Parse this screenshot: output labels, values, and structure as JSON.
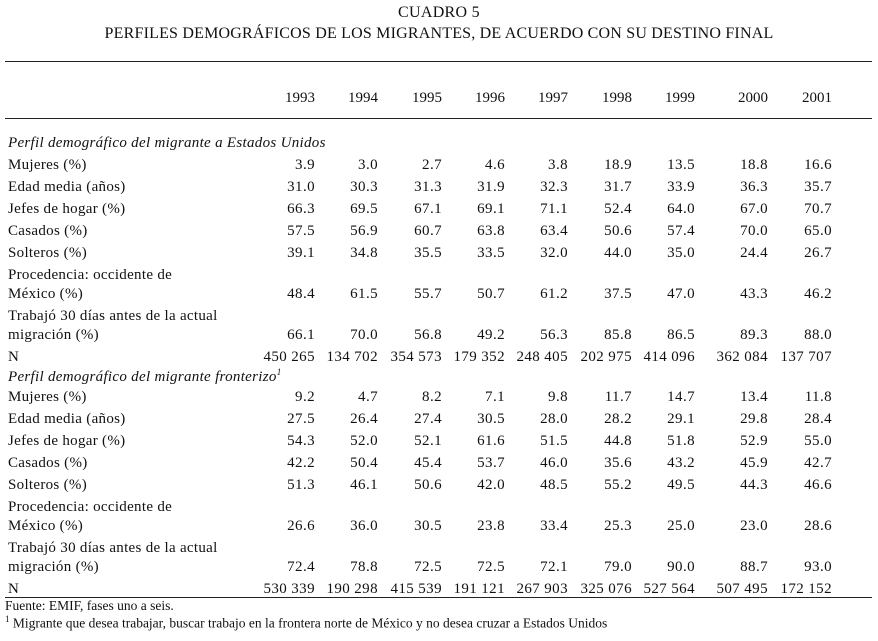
{
  "header": {
    "cuadro": "CUADRO 5",
    "title": "PERFILES DEMOGRÁFICOS DE LOS MIGRANTES, DE ACUERDO CON SU DESTINO FINAL"
  },
  "years": [
    "1993",
    "1994",
    "1995",
    "1996",
    "1997",
    "1998",
    "1999",
    "2000",
    "2001"
  ],
  "sections": [
    {
      "title": "Perfil demográfico del migrante a Estados Unidos",
      "sup": "",
      "rows": [
        {
          "label": "Mujeres (%)",
          "label2": "",
          "values": [
            "3.9",
            "3.0",
            "2.7",
            "4.6",
            "3.8",
            "18.9",
            "13.5",
            "18.8",
            "16.6"
          ]
        },
        {
          "label": "Edad media (años)",
          "label2": "",
          "values": [
            "31.0",
            "30.3",
            "31.3",
            "31.9",
            "32.3",
            "31.7",
            "33.9",
            "36.3",
            "35.7"
          ]
        },
        {
          "label": "Jefes de hogar (%)",
          "label2": "",
          "values": [
            "66.3",
            "69.5",
            "67.1",
            "69.1",
            "71.1",
            "52.4",
            "64.0",
            "67.0",
            "70.7"
          ]
        },
        {
          "label": "Casados (%)",
          "label2": "",
          "values": [
            "57.5",
            "56.9",
            "60.7",
            "63.8",
            "63.4",
            "50.6",
            "57.4",
            "70.0",
            "65.0"
          ]
        },
        {
          "label": "Solteros (%)",
          "label2": "",
          "values": [
            "39.1",
            "34.8",
            "35.5",
            "33.5",
            "32.0",
            "44.0",
            "35.0",
            "24.4",
            "26.7"
          ]
        },
        {
          "label": "Procedencia: occidente de",
          "label2": "México (%)",
          "values": [
            "48.4",
            "61.5",
            "55.7",
            "50.7",
            "61.2",
            "37.5",
            "47.0",
            "43.3",
            "46.2"
          ]
        },
        {
          "label": "Trabajó 30 días antes de la actual",
          "label2": "migración (%)",
          "values": [
            "66.1",
            "70.0",
            "56.8",
            "49.2",
            "56.3",
            "85.8",
            "86.5",
            "89.3",
            "88.0"
          ]
        },
        {
          "label": "N",
          "label2": "",
          "values": [
            "450 265",
            "134 702",
            "354 573",
            "179 352",
            "248 405",
            "202 975",
            "414 096",
            "362 084",
            "137 707"
          ]
        }
      ]
    },
    {
      "title": "Perfil demográfico del migrante fronterizo",
      "sup": "1",
      "rows": [
        {
          "label": "Mujeres (%)",
          "label2": "",
          "values": [
            "9.2",
            "4.7",
            "8.2",
            "7.1",
            "9.8",
            "11.7",
            "14.7",
            "13.4",
            "11.8"
          ]
        },
        {
          "label": "Edad media (años)",
          "label2": "",
          "values": [
            "27.5",
            "26.4",
            "27.4",
            "30.5",
            "28.0",
            "28.2",
            "29.1",
            "29.8",
            "28.4"
          ]
        },
        {
          "label": "Jefes de hogar (%)",
          "label2": "",
          "values": [
            "54.3",
            "52.0",
            "52.1",
            "61.6",
            "51.5",
            "44.8",
            "51.8",
            "52.9",
            "55.0"
          ]
        },
        {
          "label": "Casados (%)",
          "label2": "",
          "values": [
            "42.2",
            "50.4",
            "45.4",
            "53.7",
            "46.0",
            "35.6",
            "43.2",
            "45.9",
            "42.7"
          ]
        },
        {
          "label": "Solteros (%)",
          "label2": "",
          "values": [
            "51.3",
            "46.1",
            "50.6",
            "42.0",
            "48.5",
            "55.2",
            "49.5",
            "44.3",
            "46.6"
          ]
        },
        {
          "label": "Procedencia: occidente de",
          "label2": "México (%)",
          "values": [
            "26.6",
            "36.0",
            "30.5",
            "23.8",
            "33.4",
            "25.3",
            "25.0",
            "23.0",
            "28.6"
          ]
        },
        {
          "label": "Trabajó 30 días antes de la actual",
          "label2": "migración (%)",
          "values": [
            "72.4",
            "78.8",
            "72.5",
            "72.5",
            "72.1",
            "79.0",
            "90.0",
            "88.7",
            "93.0"
          ]
        },
        {
          "label": "N",
          "label2": "",
          "values": [
            "530 339",
            "190 298",
            "415 539",
            "191 121",
            "267 903",
            "325 076",
            "527 564",
            "507 495",
            "172 152"
          ]
        }
      ]
    }
  ],
  "footer": {
    "source": "Fuente: EMIF, fases uno a seis.",
    "note_sup": "1",
    "note": " Migrante que desea trabajar, buscar trabajo en la frontera norte de México y no desea cruzar a Estados Unidos"
  }
}
